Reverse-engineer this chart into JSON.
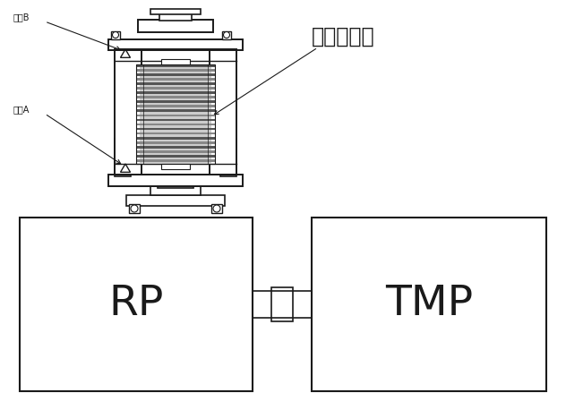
{
  "bg_color": "#ffffff",
  "line_color": "#1a1a1a",
  "title_text": "無振動継手",
  "label_b": "測点B",
  "label_a": "測点A",
  "rp_text": "RP",
  "tmp_text": "TMP",
  "fig_width": 6.32,
  "fig_height": 4.58,
  "dpi": 100
}
